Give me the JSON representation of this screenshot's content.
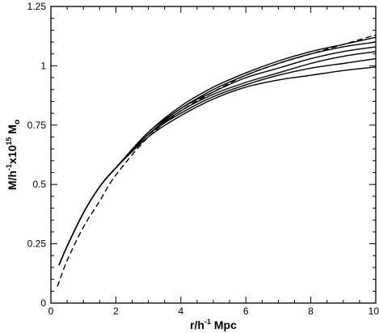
{
  "chart_data": {
    "type": "line",
    "xlabel": {
      "base": "r/h",
      "exp": "-1",
      "rest": " Mpc"
    },
    "ylabel": {
      "base": "M/h",
      "exp1": "-1",
      "mid": "x10",
      "exp2": "15",
      "rest": " M",
      "sub": "o"
    },
    "xlim": [
      0,
      10
    ],
    "ylim": [
      0,
      1.25
    ],
    "x_ticks": [
      "0",
      "2",
      "4",
      "6",
      "8",
      "10"
    ],
    "y_ticks": [
      "0",
      "0.25",
      "0.5",
      "0.75",
      "1",
      "1.25"
    ],
    "grid": false,
    "legend": "none",
    "series": [
      {
        "style": "dashed",
        "x": [
          0.2,
          0.5,
          1,
          1.5,
          2,
          3,
          4,
          5,
          6,
          7,
          8,
          9,
          10
        ],
        "y": [
          0.07,
          0.18,
          0.32,
          0.43,
          0.54,
          0.7,
          0.81,
          0.89,
          0.96,
          1.01,
          1.05,
          1.09,
          1.13
        ]
      },
      {
        "style": "solid",
        "x": [
          0.25,
          0.5,
          1,
          1.5,
          2,
          3,
          4,
          5,
          6,
          7,
          8,
          9,
          10
        ],
        "y": [
          0.16,
          0.24,
          0.38,
          0.49,
          0.57,
          0.72,
          0.83,
          0.91,
          0.97,
          1.02,
          1.06,
          1.09,
          1.12
        ]
      },
      {
        "style": "solid",
        "x": [
          0.25,
          0.5,
          1,
          1.5,
          2,
          3,
          4,
          5,
          6,
          7,
          8,
          9,
          10
        ],
        "y": [
          0.16,
          0.24,
          0.38,
          0.49,
          0.57,
          0.72,
          0.82,
          0.9,
          0.96,
          1.01,
          1.05,
          1.08,
          1.1
        ]
      },
      {
        "style": "solid",
        "x": [
          0.25,
          0.5,
          1,
          1.5,
          2,
          3,
          4,
          5,
          6,
          7,
          8,
          9,
          10
        ],
        "y": [
          0.16,
          0.24,
          0.38,
          0.49,
          0.57,
          0.71,
          0.82,
          0.89,
          0.95,
          0.99,
          1.03,
          1.06,
          1.08
        ]
      },
      {
        "style": "solid",
        "x": [
          0.25,
          0.5,
          1,
          1.5,
          2,
          3,
          4,
          5,
          6,
          7,
          8,
          9,
          10
        ],
        "y": [
          0.16,
          0.24,
          0.38,
          0.49,
          0.57,
          0.71,
          0.81,
          0.88,
          0.93,
          0.97,
          1.01,
          1.04,
          1.06
        ]
      },
      {
        "style": "solid",
        "x": [
          0.25,
          0.5,
          1,
          1.5,
          2,
          3,
          4,
          5,
          6,
          7,
          8,
          9,
          10
        ],
        "y": [
          0.16,
          0.24,
          0.38,
          0.49,
          0.57,
          0.71,
          0.8,
          0.87,
          0.92,
          0.96,
          0.99,
          1.01,
          1.03
        ]
      },
      {
        "style": "solid",
        "x": [
          0.25,
          0.5,
          1,
          1.5,
          2,
          3,
          4,
          5,
          6,
          7,
          8,
          9,
          10
        ],
        "y": [
          0.16,
          0.24,
          0.38,
          0.49,
          0.57,
          0.7,
          0.79,
          0.86,
          0.91,
          0.94,
          0.96,
          0.98,
          0.995
        ]
      }
    ]
  }
}
